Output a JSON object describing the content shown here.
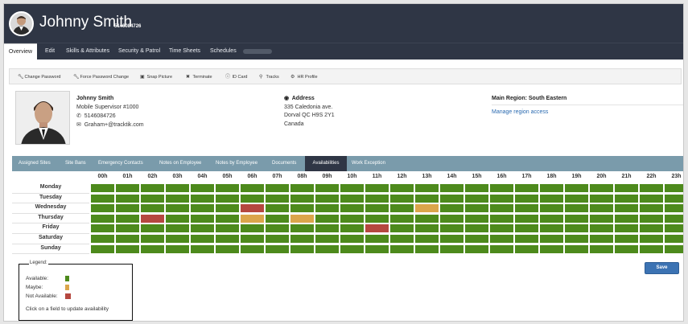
{
  "header": {
    "name": "Johnny Smith",
    "employee_id": "5146084726"
  },
  "nav": {
    "tabs": [
      {
        "label": "Overview",
        "active": true
      },
      {
        "label": "Edit"
      },
      {
        "label": "Skills & Attributes"
      },
      {
        "label": "Security & Patrol"
      },
      {
        "label": "Time Sheets"
      },
      {
        "label": "Schedules"
      }
    ]
  },
  "actions": [
    {
      "label": "Change Password",
      "icon": "wrench-icon"
    },
    {
      "label": "Force Password Change",
      "icon": "wrench-icon"
    },
    {
      "label": "Snap Picture",
      "icon": "camera-icon"
    },
    {
      "label": "Terminate",
      "icon": "x-icon"
    },
    {
      "label": "ID Card",
      "icon": "info-icon"
    },
    {
      "label": "Tracks",
      "icon": "map-marker-icon"
    },
    {
      "label": "HR Profile",
      "icon": "gear-icon"
    }
  ],
  "profile": {
    "name": "Johnny Smith",
    "role": "Mobile Supervisor #1000",
    "phone": "5146084726",
    "email": "Graham+@tracktik.com",
    "address_label": "Address",
    "address_line1": "335 Caledonia ave.",
    "address_line2": "Dorval QC H9S 2Y1",
    "address_country": "Canada",
    "region": "Main Region: South Eastern",
    "region_link": "Manage region access"
  },
  "subtabs": [
    {
      "label": "Assigned Sites"
    },
    {
      "label": "Site Bans"
    },
    {
      "label": "Emergency Contacts"
    },
    {
      "label": "Notes on Employee"
    },
    {
      "label": "Notes by Employee"
    },
    {
      "label": "Documents"
    },
    {
      "label": "Availabilities",
      "active": true
    },
    {
      "label": "Work Exception"
    }
  ],
  "availability": {
    "hours": [
      "00h",
      "01h",
      "02h",
      "03h",
      "04h",
      "05h",
      "06h",
      "07h",
      "08h",
      "09h",
      "10h",
      "11h",
      "12h",
      "13h",
      "14h",
      "15h",
      "16h",
      "17h",
      "18h",
      "19h",
      "20h",
      "21h",
      "22h",
      "23h"
    ],
    "days": [
      "Monday",
      "Tuesday",
      "Wednesday",
      "Thursday",
      "Friday",
      "Saturday",
      "Sunday"
    ],
    "grid": [
      [
        "A",
        "A",
        "A",
        "A",
        "A",
        "A",
        "A",
        "A",
        "A",
        "A",
        "A",
        "A",
        "A",
        "A",
        "A",
        "A",
        "A",
        "A",
        "A",
        "A",
        "A",
        "A",
        "A",
        "A"
      ],
      [
        "A",
        "A",
        "A",
        "A",
        "A",
        "A",
        "A",
        "A",
        "A",
        "A",
        "A",
        "A",
        "A",
        "A",
        "A",
        "A",
        "A",
        "A",
        "A",
        "A",
        "A",
        "A",
        "A",
        "A"
      ],
      [
        "A",
        "A",
        "A",
        "A",
        "A",
        "A",
        "N",
        "A",
        "A",
        "A",
        "A",
        "A",
        "A",
        "M",
        "A",
        "A",
        "A",
        "A",
        "A",
        "A",
        "A",
        "A",
        "A",
        "A"
      ],
      [
        "A",
        "A",
        "N",
        "A",
        "A",
        "A",
        "M",
        "A",
        "M",
        "A",
        "A",
        "A",
        "A",
        "A",
        "A",
        "A",
        "A",
        "A",
        "A",
        "A",
        "A",
        "A",
        "A",
        "A"
      ],
      [
        "A",
        "A",
        "A",
        "A",
        "A",
        "A",
        "A",
        "A",
        "A",
        "A",
        "A",
        "N",
        "A",
        "A",
        "A",
        "A",
        "A",
        "A",
        "A",
        "A",
        "A",
        "A",
        "A",
        "A"
      ],
      [
        "A",
        "A",
        "A",
        "A",
        "A",
        "A",
        "A",
        "A",
        "A",
        "A",
        "A",
        "A",
        "A",
        "A",
        "A",
        "A",
        "A",
        "A",
        "A",
        "A",
        "A",
        "A",
        "A",
        "A"
      ],
      [
        "A",
        "A",
        "A",
        "A",
        "A",
        "A",
        "A",
        "A",
        "A",
        "A",
        "A",
        "A",
        "A",
        "A",
        "A",
        "A",
        "A",
        "A",
        "A",
        "A",
        "A",
        "A",
        "A",
        "A"
      ]
    ],
    "colors": {
      "A": "#4d8a1c",
      "M": "#dba54b",
      "N": "#b5473f"
    }
  },
  "legend": {
    "title": "Legend",
    "available": "Available:",
    "maybe": "Maybe:",
    "not_available": "Not Available:",
    "hint": "Click on a field to update availability"
  },
  "save_label": "Save"
}
